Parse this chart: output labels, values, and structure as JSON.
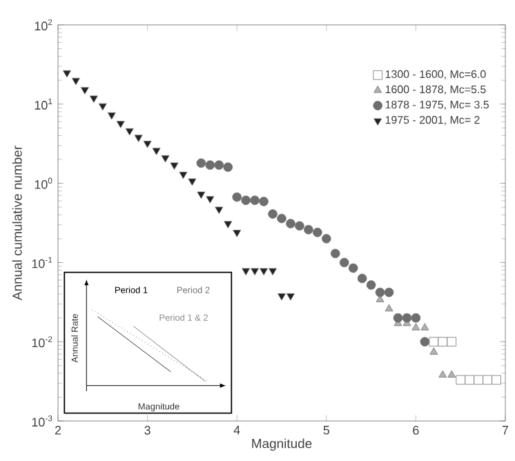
{
  "chart_data": {
    "type": "scatter",
    "xlabel": "Magnitude",
    "ylabel": "Annual cumulative number",
    "log": "y",
    "xlim": [
      2,
      7
    ],
    "ylim": [
      0.001,
      100
    ],
    "xticks": [
      2,
      3,
      4,
      5,
      6,
      7
    ],
    "yticks": [
      {
        "value": 0.001,
        "label": "10$^{-3}$"
      },
      {
        "value": 0.01,
        "label": "10$^{-2}$"
      },
      {
        "value": 0.1,
        "label": "10$^{-1}$"
      },
      {
        "value": 1,
        "label": "10$^{0}$"
      },
      {
        "value": 10,
        "label": "10$^{1}$"
      },
      {
        "value": 100,
        "label": "10$^{2}$"
      }
    ],
    "legend": "top right",
    "grid": false,
    "annotations": [
      "Period 1",
      "Period 2",
      "Period 1 & 2",
      "Annual Rate",
      "Magnitude"
    ],
    "series": [
      {
        "name": "1300 - 1600, Mc=6.0",
        "color": "#ffffff",
        "marker": "square",
        "x": [
          6.2,
          6.3,
          6.4,
          6.5,
          6.6,
          6.7,
          6.8,
          6.9
        ],
        "values": [
          0.01,
          0.01,
          0.01,
          0.0033,
          0.0033,
          0.0033,
          0.0033,
          0.0033
        ]
      },
      {
        "name": "1600 - 1878, Mc=5.5",
        "color": "#b0b0b0",
        "marker": "triangle",
        "x": [
          5.6,
          5.7,
          5.8,
          5.9,
          6.0,
          6.1,
          6.2,
          6.3,
          6.4
        ],
        "values": [
          0.034,
          0.026,
          0.017,
          0.017,
          0.015,
          0.015,
          0.0074,
          0.0038,
          0.0038
        ]
      },
      {
        "name": "1878 - 1975, Mc= 3.5",
        "color": "#6e6e6e",
        "marker": "circle",
        "x": [
          3.6,
          3.7,
          3.8,
          3.9,
          4.0,
          4.1,
          4.2,
          4.3,
          4.4,
          4.5,
          4.6,
          4.7,
          4.8,
          4.9,
          5.0,
          5.1,
          5.2,
          5.3,
          5.4,
          5.5,
          5.6,
          5.7,
          5.8,
          5.9,
          6.0,
          6.1
        ],
        "values": [
          1.8,
          1.7,
          1.7,
          1.6,
          0.67,
          0.61,
          0.61,
          0.59,
          0.41,
          0.36,
          0.31,
          0.29,
          0.26,
          0.24,
          0.2,
          0.13,
          0.1,
          0.085,
          0.063,
          0.052,
          0.042,
          0.042,
          0.02,
          0.02,
          0.02,
          0.01
        ]
      },
      {
        "name": "1975 - 2001, Mc= 2",
        "color": "#222222",
        "marker": "triangle down",
        "x": [
          2.1,
          2.2,
          2.3,
          2.4,
          2.5,
          2.6,
          2.7,
          2.8,
          2.9,
          3.0,
          3.1,
          3.2,
          3.3,
          3.4,
          3.5,
          3.6,
          3.7,
          3.8,
          3.9,
          4.0,
          4.1,
          4.2,
          4.3,
          4.4,
          4.5,
          4.6
        ],
        "values": [
          24.8,
          19.9,
          15.2,
          11.9,
          9.5,
          7.3,
          5.7,
          4.6,
          3.8,
          3.2,
          2.6,
          2.1,
          1.7,
          1.3,
          1.07,
          0.73,
          0.64,
          0.47,
          0.31,
          0.24,
          0.079,
          0.079,
          0.079,
          0.079,
          0.038,
          0.038
        ]
      }
    ]
  }
}
